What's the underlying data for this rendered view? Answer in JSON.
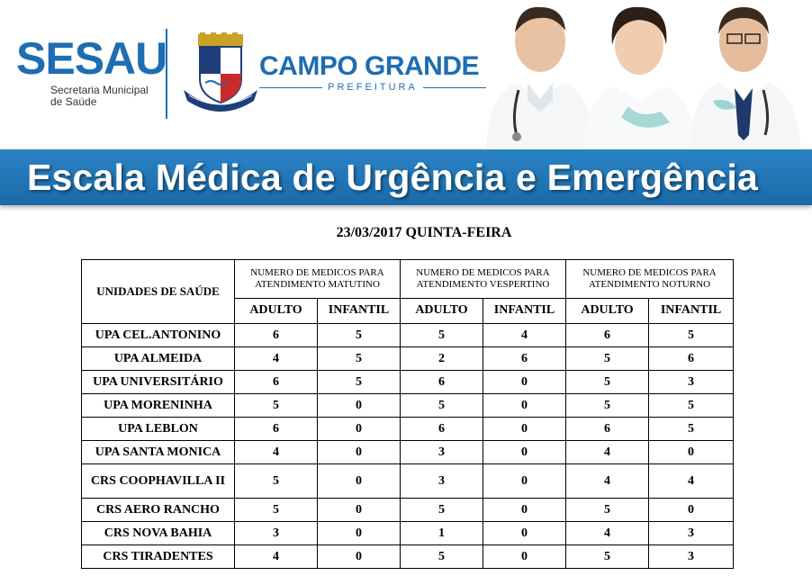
{
  "header": {
    "sesau_logo": "SESAU",
    "sesau_subtitle_line1": "Secretaria Municipal",
    "sesau_subtitle_line2": "de Saúde",
    "city_title": "CAMPO GRANDE",
    "city_subtitle": "PREFEITURA",
    "banner_title": "Escala Médica de Urgência e Emergência",
    "brand_color": "#1e6db2"
  },
  "date_line": "23/03/2017 QUINTA-FEIRA",
  "table": {
    "unit_header": "UNIDADES DE SAÚDE",
    "periods": [
      "NUMERO DE MEDICOS PARA ATENDIMENTO MATUTINO",
      "NUMERO DE MEDICOS PARA ATENDIMENTO VESPERTINO",
      "NUMERO DE MEDICOS PARA ATENDIMENTO NOTURNO"
    ],
    "sub_headers": [
      "ADULTO",
      "INFANTIL",
      "ADULTO",
      "INFANTIL",
      "ADULTO",
      "INFANTIL"
    ],
    "rows": [
      {
        "unit": "UPA CEL.ANTONINO",
        "values": [
          "6",
          "5",
          "5",
          "4",
          "6",
          "5"
        ]
      },
      {
        "unit": "UPA ALMEIDA",
        "values": [
          "4",
          "5",
          "2",
          "6",
          "5",
          "6"
        ]
      },
      {
        "unit": "UPA UNIVERSITÁRIO",
        "values": [
          "6",
          "5",
          "6",
          "0",
          "5",
          "3"
        ]
      },
      {
        "unit": "UPA MORENINHA",
        "values": [
          "5",
          "0",
          "5",
          "0",
          "5",
          "5"
        ]
      },
      {
        "unit": "UPA LEBLON",
        "values": [
          "6",
          "0",
          "6",
          "0",
          "6",
          "5"
        ]
      },
      {
        "unit": "UPA SANTA MONICA",
        "values": [
          "4",
          "0",
          "3",
          "0",
          "4",
          "0"
        ]
      },
      {
        "unit": "CRS COOPHAVILLA II",
        "values": [
          "5",
          "0",
          "3",
          "0",
          "4",
          "4"
        ]
      },
      {
        "unit": "CRS AERO RANCHO",
        "values": [
          "5",
          "0",
          "5",
          "0",
          "5",
          "0"
        ]
      },
      {
        "unit": "CRS NOVA BAHIA",
        "values": [
          "3",
          "0",
          "1",
          "0",
          "4",
          "3"
        ]
      },
      {
        "unit": "CRS TIRADENTES",
        "values": [
          "4",
          "0",
          "5",
          "0",
          "5",
          "3"
        ]
      }
    ]
  }
}
